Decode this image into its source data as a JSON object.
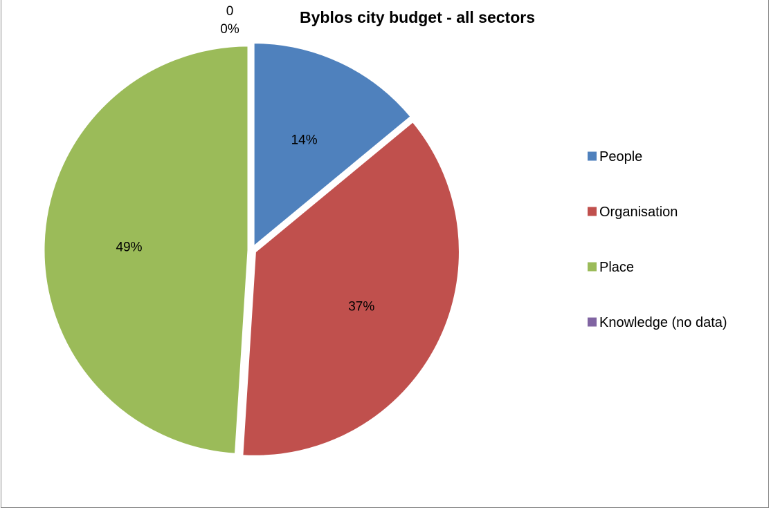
{
  "chart_data": {
    "type": "pie",
    "title": "Byblos city budget - all sectors",
    "categories": [
      "People",
      "Organisation",
      "Place",
      "Knowledge (no data)"
    ],
    "values": [
      14,
      37,
      49,
      0
    ],
    "data_labels": [
      "14%",
      "37%",
      "49%",
      "0%"
    ],
    "zero_value_label": "0",
    "legend_position": "right",
    "colors": [
      "#4F81BD",
      "#C0504D",
      "#9BBB59",
      "#8064A2"
    ]
  }
}
